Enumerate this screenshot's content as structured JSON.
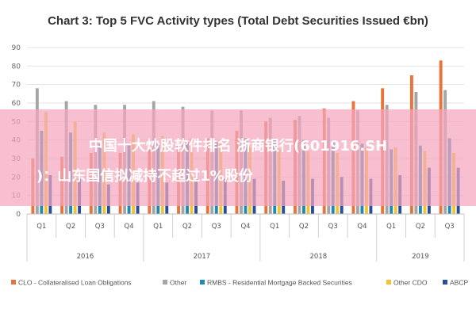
{
  "colors": {
    "background": "#ffffff",
    "grid": "#e3e3e3",
    "overlay": "#f4a6be",
    "overlay_text": "#ffffff"
  },
  "chart_data": {
    "type": "bar",
    "title": "Chart 3: Top 5 FVC Activity types (Total Debt Securities Issued €bn)",
    "ylim": [
      0,
      90
    ],
    "yticks": [
      0,
      10,
      20,
      30,
      40,
      50,
      60,
      70,
      80,
      90
    ],
    "grid": true,
    "legend_position": "bottom",
    "categories": [
      "Q1",
      "Q2",
      "Q3",
      "Q4",
      "Q1",
      "Q2",
      "Q3",
      "Q4",
      "Q1",
      "Q2",
      "Q3",
      "Q4",
      "Q1",
      "Q2",
      "Q3"
    ],
    "year_groups": [
      {
        "label": "2016",
        "count": 4
      },
      {
        "label": "2017",
        "count": 4
      },
      {
        "label": "2018",
        "count": 4
      },
      {
        "label": "2019",
        "count": 3
      }
    ],
    "series": [
      {
        "name": "CLO - Collateralised Loan Obligations",
        "color": "#e8743b",
        "values": [
          30,
          31,
          33,
          33,
          35,
          38,
          41,
          45,
          50,
          51,
          57,
          61,
          68,
          75,
          83
        ]
      },
      {
        "name": "Other",
        "color": "#a5a5a5",
        "values": [
          68,
          61,
          59,
          59,
          61,
          58,
          56,
          56,
          52,
          53,
          52,
          56,
          59,
          66,
          67
        ]
      },
      {
        "name": "RMBS - Residential Mortgage Backed Securities",
        "color": "#1f8ab2",
        "values": [
          45,
          44,
          38,
          38,
          38,
          39,
          39,
          41,
          40,
          40,
          39,
          38,
          35,
          37,
          41
        ]
      },
      {
        "name": "Other CDO",
        "color": "#f2c432",
        "values": [
          55,
          50,
          44,
          43,
          42,
          41,
          38,
          36,
          35,
          34,
          33,
          36,
          36,
          34,
          33
        ]
      },
      {
        "name": "ABCP",
        "color": "#2a4f99",
        "values": [
          21,
          19,
          16,
          17,
          17,
          19,
          19,
          19,
          18,
          19,
          20,
          19,
          21,
          25,
          25
        ]
      }
    ]
  },
  "overlay": {
    "line1": "中国十大炒股软件排名 浙商银行(601916.SH",
    "line2": ")：山东国信拟减持不超过1%股份"
  }
}
